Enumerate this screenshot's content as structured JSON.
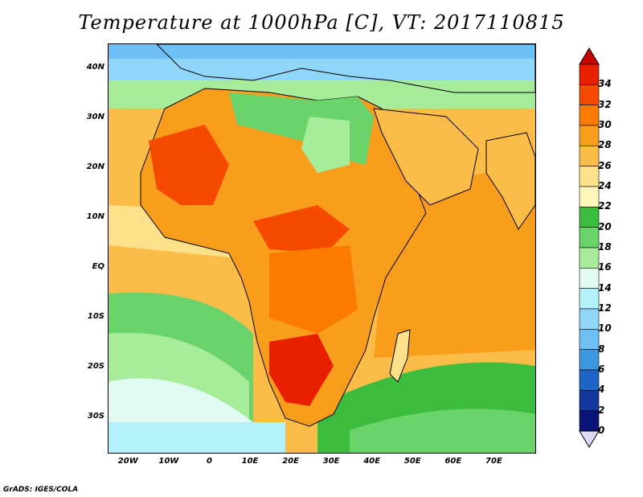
{
  "title": "Temperature at 1000hPa [C], VT: 2017110815",
  "credit": "GrADS: IGES/COLA",
  "map": {
    "variable": "Temperature at 1000hPa",
    "units": "C",
    "valid_time": "2017110815",
    "lon_range": [
      -25,
      80
    ],
    "lat_range": [
      -37,
      45
    ],
    "lat_ticks": [
      {
        "value": 40,
        "label": "40N"
      },
      {
        "value": 30,
        "label": "30N"
      },
      {
        "value": 20,
        "label": "20N"
      },
      {
        "value": 10,
        "label": "10N"
      },
      {
        "value": 0,
        "label": "EQ"
      },
      {
        "value": -10,
        "label": "10S"
      },
      {
        "value": -20,
        "label": "20S"
      },
      {
        "value": -30,
        "label": "30S"
      }
    ],
    "lon_ticks": [
      {
        "value": -20,
        "label": "20W"
      },
      {
        "value": -10,
        "label": "10W"
      },
      {
        "value": 0,
        "label": "0"
      },
      {
        "value": 10,
        "label": "10E"
      },
      {
        "value": 20,
        "label": "20E"
      },
      {
        "value": 30,
        "label": "30E"
      },
      {
        "value": 40,
        "label": "40E"
      },
      {
        "value": 50,
        "label": "50E"
      },
      {
        "value": 60,
        "label": "60E"
      },
      {
        "value": 70,
        "label": "70E"
      }
    ]
  },
  "colorbar": {
    "levels": [
      "34",
      "32",
      "30",
      "28",
      "26",
      "24",
      "22",
      "20",
      "18",
      "16",
      "14",
      "12",
      "10",
      "8",
      "6",
      "4",
      "2",
      "0"
    ],
    "colors": [
      "#e82000",
      "#f54a00",
      "#fb7a00",
      "#f99d1c",
      "#fbbd48",
      "#fde08a",
      "#fef6b8",
      "#3cbc3c",
      "#6ad46a",
      "#a6ec9a",
      "#e2fbf2",
      "#b4f0fa",
      "#8fd6f9",
      "#6ec0f4",
      "#3c96e0",
      "#1f64c8",
      "#1437a0",
      "#0a1478"
    ],
    "max_arrow_color": "#c80000",
    "min_arrow_color": "#e0d8f8"
  }
}
